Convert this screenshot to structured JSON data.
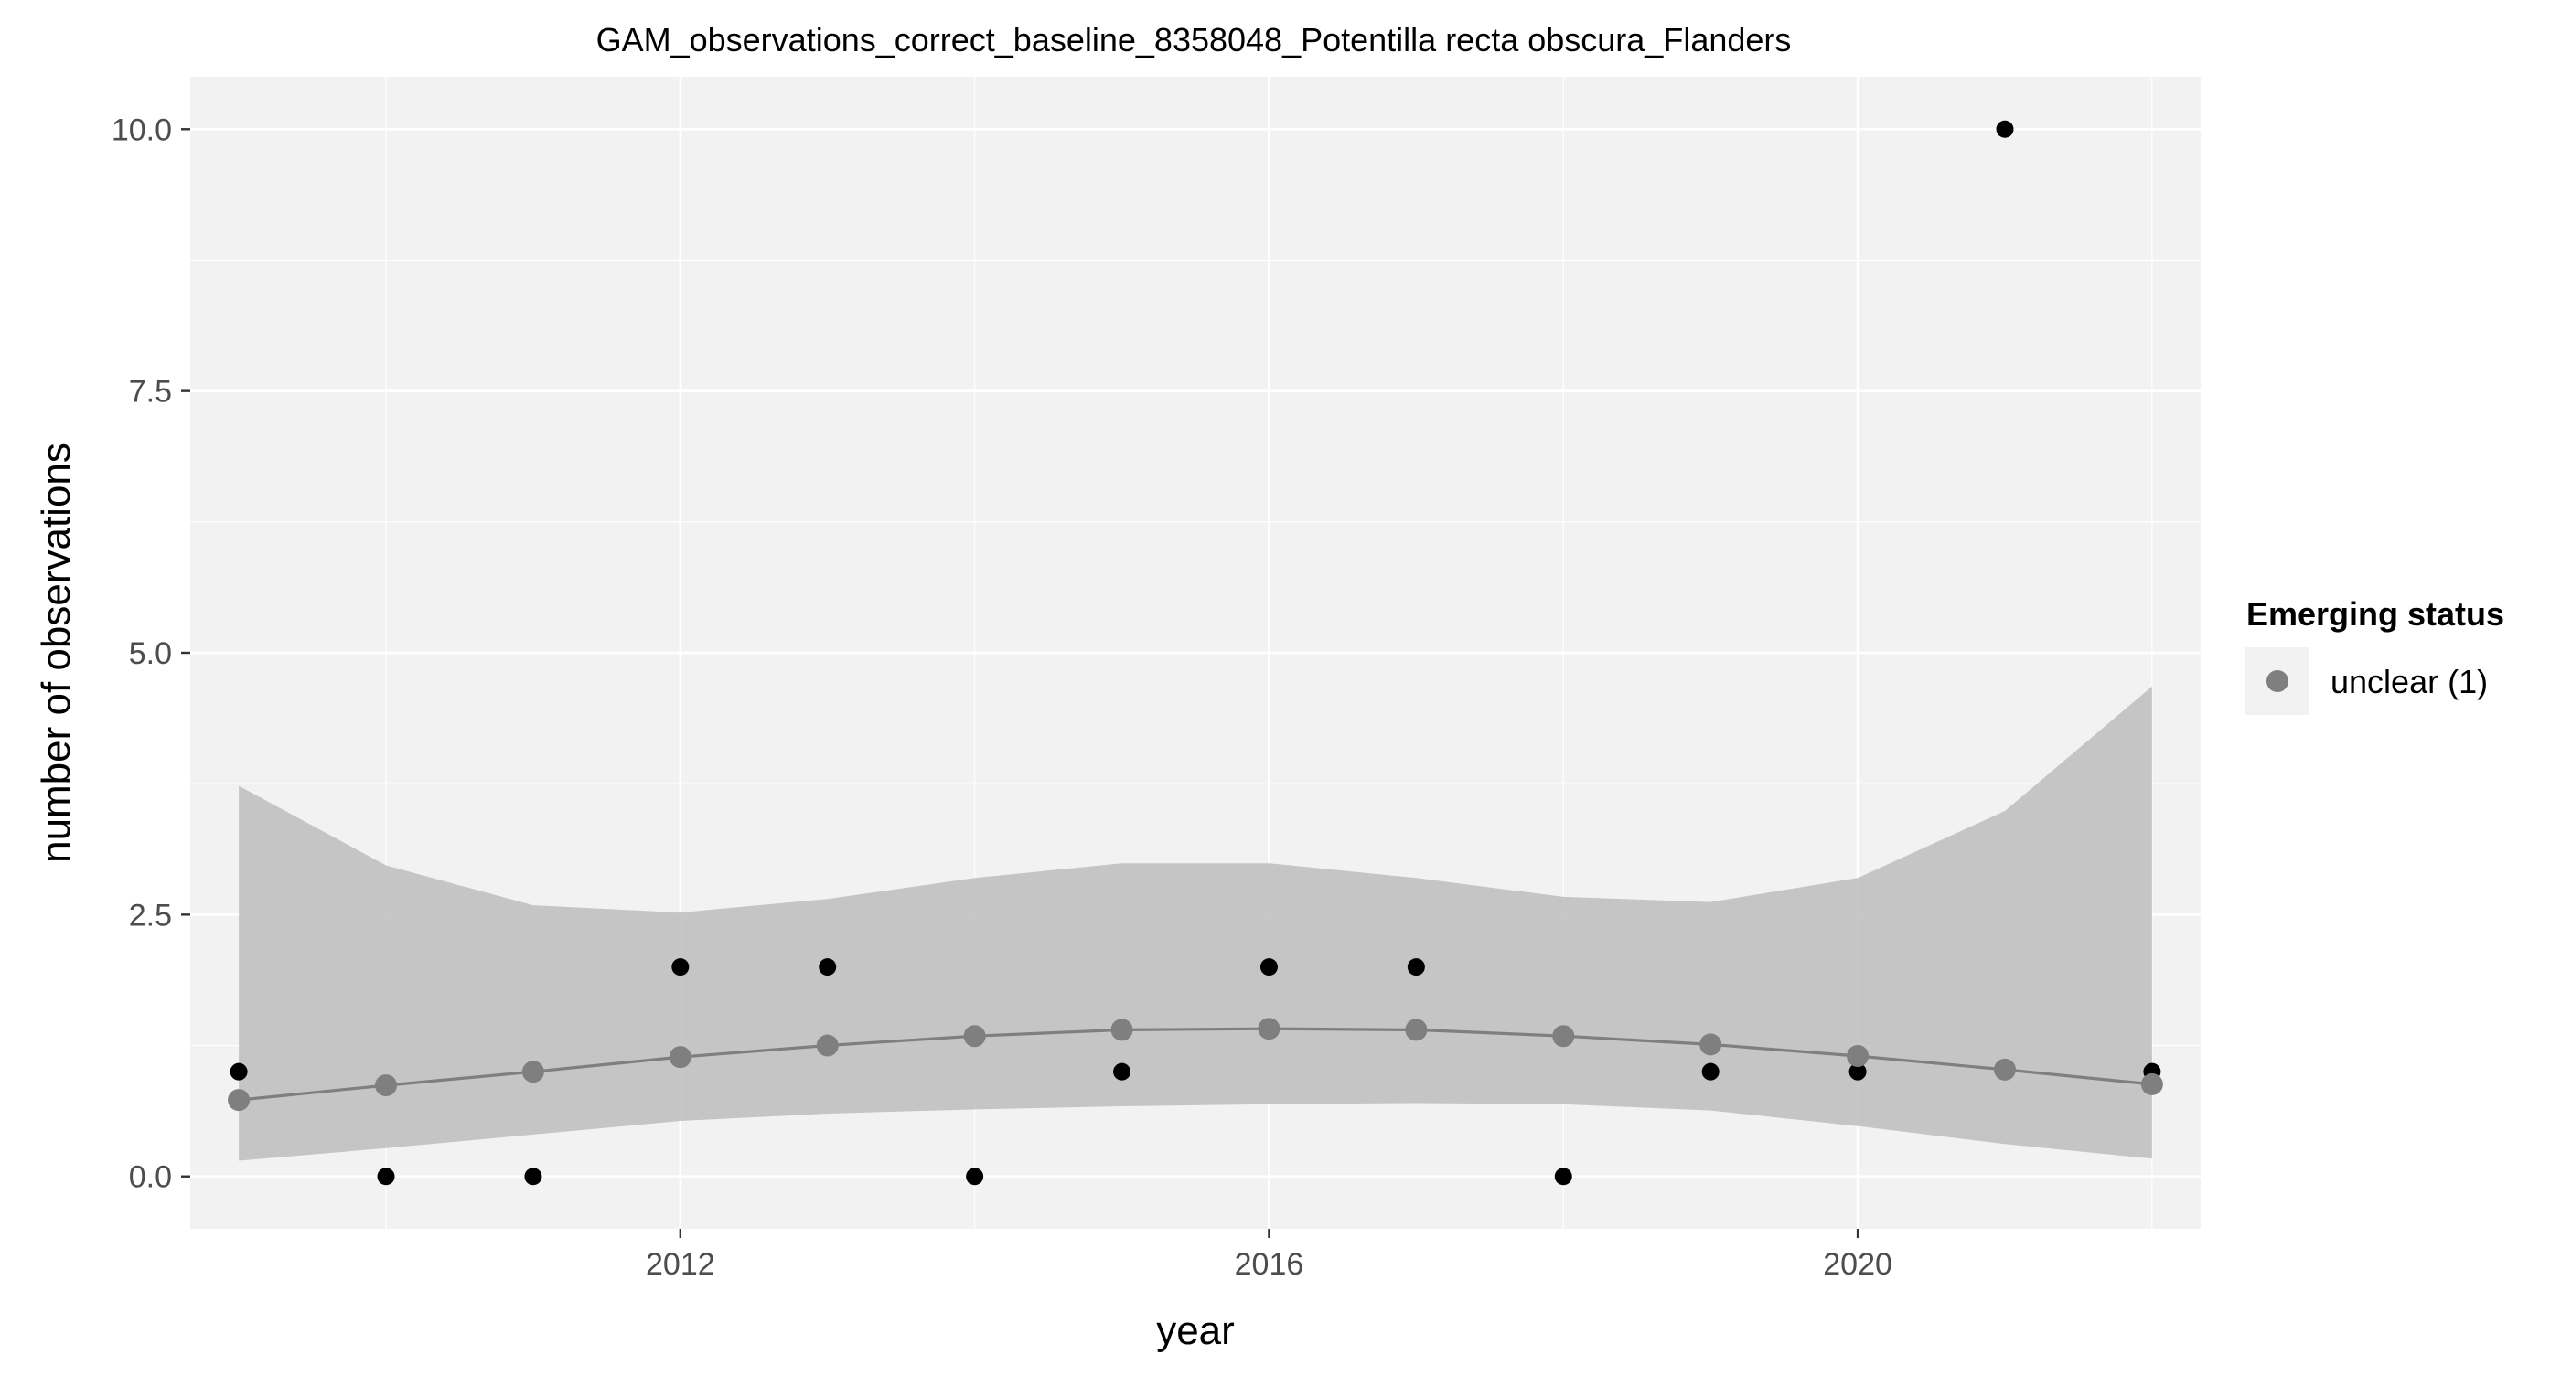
{
  "chart_data": {
    "type": "line",
    "title": "GAM_observations_correct_baseline_8358048_Potentilla recta obscura_Flanders",
    "xlabel": "year",
    "ylabel": "number of observations",
    "xlim": [
      2008.67,
      2022.33
    ],
    "ylim": [
      -0.5,
      10.5
    ],
    "x_ticks": [
      2012,
      2016,
      2020
    ],
    "y_ticks": [
      0.0,
      2.5,
      5.0,
      7.5,
      10.0
    ],
    "y_tick_labels": [
      "0.0",
      "2.5",
      "5.0",
      "7.5",
      "10.0"
    ],
    "grid": true,
    "legend": {
      "title": "Emerging status",
      "position": "right",
      "entries": [
        {
          "label": "unclear (1)",
          "color": "#7f7f7f"
        }
      ]
    },
    "observations": {
      "x": [
        2009,
        2010,
        2011,
        2012,
        2013,
        2014,
        2015,
        2016,
        2017,
        2018,
        2019,
        2020,
        2021,
        2022
      ],
      "y": [
        1,
        0,
        0,
        2,
        2,
        0,
        1,
        2,
        2,
        0,
        1,
        1,
        10,
        1
      ],
      "color": "#000000"
    },
    "fit": {
      "x": [
        2009,
        2010,
        2011,
        2012,
        2013,
        2014,
        2015,
        2016,
        2017,
        2018,
        2019,
        2020,
        2021,
        2022
      ],
      "y": [
        0.73,
        0.87,
        1.0,
        1.14,
        1.25,
        1.34,
        1.4,
        1.41,
        1.4,
        1.34,
        1.26,
        1.15,
        1.02,
        0.88
      ],
      "lower": [
        0.15,
        0.27,
        0.4,
        0.53,
        0.6,
        0.64,
        0.67,
        0.69,
        0.7,
        0.69,
        0.63,
        0.48,
        0.31,
        0.17
      ],
      "upper": [
        3.73,
        2.97,
        2.59,
        2.52,
        2.65,
        2.85,
        2.99,
        2.99,
        2.85,
        2.67,
        2.62,
        2.85,
        3.49,
        4.68
      ],
      "line_color": "#7f7f7f",
      "point_color": "#7f7f7f",
      "ribbon_color": "#bdbdbd"
    },
    "colors": {
      "panel_background": "#f2f2f2",
      "grid": "#ffffff",
      "axis_text": "#4d4d4d",
      "tick": "#333333"
    }
  }
}
